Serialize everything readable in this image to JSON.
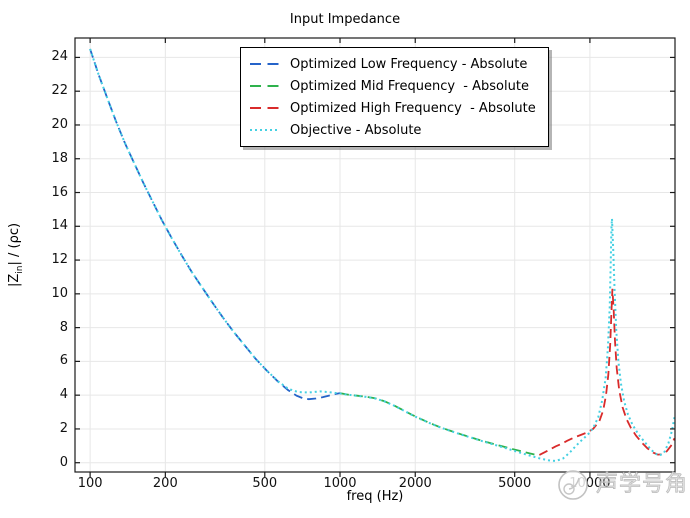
{
  "title": "Input Impedance",
  "axes": {
    "x": {
      "label": "freq (Hz)",
      "scale": "log",
      "ticks": [
        100,
        200,
        500,
        1000,
        2000,
        5000,
        10000
      ]
    },
    "y": {
      "label_prefix": "|Z",
      "label_sub": "in",
      "label_suffix": "| / (ρc)",
      "ticks": [
        0,
        2,
        4,
        6,
        8,
        10,
        12,
        14,
        16,
        18,
        20,
        22,
        24
      ]
    }
  },
  "watermark": {
    "text": "声学号角"
  },
  "colors": {
    "low": "#2563c9",
    "mid": "#2eb24c",
    "high": "#d92b2b",
    "objective": "#45d0e2",
    "grid": "#e7e7e7",
    "frame": "#1a1a1a"
  },
  "chart_data": {
    "type": "line",
    "title": "Input Impedance",
    "xlabel": "freq (Hz)",
    "ylabel": "|Z_in| / (ρc)",
    "x_scale": "log",
    "xlim": [
      87,
      21900
    ],
    "ylim": [
      -0.55,
      25.15
    ],
    "grid": true,
    "legend_position": "top-center",
    "series": [
      {
        "name": "Optimized Low Frequency - Absolute",
        "color": "#2563c9",
        "style": "dashed",
        "points": [
          [
            100,
            24.5
          ],
          [
            108,
            23.0
          ],
          [
            117,
            21.6
          ],
          [
            127,
            20.2
          ],
          [
            138,
            18.9
          ],
          [
            150,
            17.75
          ],
          [
            163,
            16.6
          ],
          [
            178,
            15.45
          ],
          [
            194,
            14.35
          ],
          [
            212,
            13.3
          ],
          [
            232,
            12.3
          ],
          [
            255,
            11.3
          ],
          [
            280,
            10.4
          ],
          [
            308,
            9.5
          ],
          [
            340,
            8.6
          ],
          [
            375,
            7.75
          ],
          [
            415,
            6.95
          ],
          [
            460,
            6.15
          ],
          [
            510,
            5.45
          ],
          [
            565,
            4.8
          ],
          [
            620,
            4.3
          ],
          [
            670,
            3.97
          ],
          [
            710,
            3.82
          ],
          [
            750,
            3.76
          ],
          [
            800,
            3.8
          ],
          [
            850,
            3.88
          ],
          [
            900,
            3.97
          ],
          [
            950,
            4.06
          ],
          [
            1000,
            4.12
          ]
        ]
      },
      {
        "name": "Optimized Mid Frequency  - Absolute",
        "color": "#2eb24c",
        "style": "dashed",
        "points": [
          [
            1000,
            4.12
          ],
          [
            1080,
            4.03
          ],
          [
            1170,
            3.97
          ],
          [
            1270,
            3.91
          ],
          [
            1380,
            3.82
          ],
          [
            1500,
            3.65
          ],
          [
            1630,
            3.42
          ],
          [
            1780,
            3.13
          ],
          [
            1950,
            2.82
          ],
          [
            2130,
            2.55
          ],
          [
            2330,
            2.3
          ],
          [
            2550,
            2.07
          ],
          [
            2790,
            1.87
          ],
          [
            3050,
            1.68
          ],
          [
            3340,
            1.5
          ],
          [
            3650,
            1.33
          ],
          [
            4000,
            1.16
          ],
          [
            4380,
            1.0
          ],
          [
            4790,
            0.85
          ],
          [
            5240,
            0.7
          ],
          [
            5740,
            0.55
          ],
          [
            6280,
            0.42
          ]
        ]
      },
      {
        "name": "Optimized High Frequency  - Absolute",
        "color": "#d92b2b",
        "style": "dashed",
        "points": [
          [
            6280,
            0.46
          ],
          [
            6600,
            0.62
          ],
          [
            6950,
            0.8
          ],
          [
            7300,
            0.97
          ],
          [
            7700,
            1.12
          ],
          [
            8100,
            1.3
          ],
          [
            8600,
            1.48
          ],
          [
            9100,
            1.62
          ],
          [
            9700,
            1.78
          ],
          [
            10300,
            2.0
          ],
          [
            10900,
            2.45
          ],
          [
            11300,
            3.1
          ],
          [
            11600,
            4.0
          ],
          [
            11850,
            5.2
          ],
          [
            12050,
            7.0
          ],
          [
            12200,
            9.0
          ],
          [
            12300,
            10.3
          ],
          [
            12450,
            9.0
          ],
          [
            12600,
            7.2
          ],
          [
            12800,
            5.6
          ],
          [
            13100,
            4.3
          ],
          [
            13500,
            3.3
          ],
          [
            14000,
            2.6
          ],
          [
            14600,
            2.05
          ],
          [
            15300,
            1.6
          ],
          [
            16100,
            1.2
          ],
          [
            17000,
            0.85
          ],
          [
            17900,
            0.6
          ],
          [
            18700,
            0.48
          ],
          [
            19500,
            0.5
          ],
          [
            20300,
            0.68
          ],
          [
            21100,
            1.0
          ],
          [
            21800,
            1.45
          ]
        ]
      },
      {
        "name": "Objective - Absolute",
        "color": "#45d0e2",
        "style": "dotted",
        "points": [
          [
            100,
            24.5
          ],
          [
            108,
            23.0
          ],
          [
            117,
            21.6
          ],
          [
            127,
            20.2
          ],
          [
            138,
            18.9
          ],
          [
            150,
            17.75
          ],
          [
            163,
            16.6
          ],
          [
            178,
            15.45
          ],
          [
            194,
            14.35
          ],
          [
            212,
            13.3
          ],
          [
            232,
            12.3
          ],
          [
            255,
            11.3
          ],
          [
            280,
            10.4
          ],
          [
            308,
            9.5
          ],
          [
            340,
            8.6
          ],
          [
            375,
            7.75
          ],
          [
            415,
            6.95
          ],
          [
            460,
            6.15
          ],
          [
            510,
            5.45
          ],
          [
            565,
            4.82
          ],
          [
            620,
            4.38
          ],
          [
            680,
            4.18
          ],
          [
            750,
            4.16
          ],
          [
            830,
            4.22
          ],
          [
            900,
            4.18
          ],
          [
            1000,
            4.1
          ],
          [
            1080,
            4.02
          ],
          [
            1170,
            3.96
          ],
          [
            1270,
            3.9
          ],
          [
            1380,
            3.81
          ],
          [
            1500,
            3.64
          ],
          [
            1630,
            3.41
          ],
          [
            1780,
            3.12
          ],
          [
            1950,
            2.81
          ],
          [
            2130,
            2.54
          ],
          [
            2330,
            2.29
          ],
          [
            2550,
            2.06
          ],
          [
            2790,
            1.86
          ],
          [
            3050,
            1.67
          ],
          [
            3340,
            1.49
          ],
          [
            3650,
            1.31
          ],
          [
            4000,
            1.13
          ],
          [
            4380,
            0.96
          ],
          [
            4790,
            0.78
          ],
          [
            5240,
            0.6
          ],
          [
            5740,
            0.42
          ],
          [
            6280,
            0.26
          ],
          [
            6800,
            0.14
          ],
          [
            7300,
            0.1
          ],
          [
            7800,
            0.25
          ],
          [
            8300,
            0.6
          ],
          [
            8800,
            1.0
          ],
          [
            9300,
            1.35
          ],
          [
            9800,
            1.65
          ],
          [
            10300,
            2.05
          ],
          [
            10800,
            2.7
          ],
          [
            11200,
            3.7
          ],
          [
            11550,
            5.0
          ],
          [
            11800,
            6.8
          ],
          [
            12000,
            9.2
          ],
          [
            12100,
            11.5
          ],
          [
            12200,
            14.0
          ],
          [
            12260,
            14.45
          ],
          [
            12400,
            12.5
          ],
          [
            12550,
            10.2
          ],
          [
            12750,
            7.8
          ],
          [
            13000,
            6.0
          ],
          [
            13300,
            4.7
          ],
          [
            13700,
            3.65
          ],
          [
            14200,
            2.85
          ],
          [
            14800,
            2.25
          ],
          [
            15600,
            1.7
          ],
          [
            16500,
            1.25
          ],
          [
            17400,
            0.85
          ],
          [
            18200,
            0.55
          ],
          [
            19000,
            0.42
          ],
          [
            19800,
            0.6
          ],
          [
            20600,
            1.15
          ],
          [
            21300,
            1.9
          ],
          [
            21900,
            2.85
          ]
        ]
      }
    ]
  }
}
